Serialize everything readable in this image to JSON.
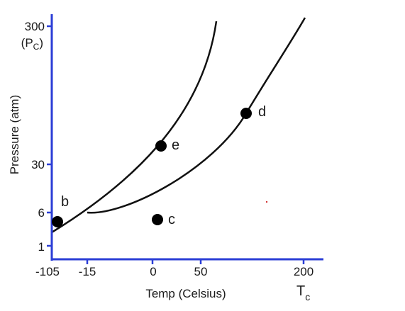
{
  "axes": {
    "y_title": "Pressure (atm)",
    "x_title": "Temp (Celsius)",
    "axis_color": "#2b3ed6"
  },
  "y_ticks": [
    {
      "label": "300"
    },
    {
      "label": "30"
    },
    {
      "label": "6"
    },
    {
      "label": "1"
    }
  ],
  "y_critical_label": {
    "open": "(P",
    "sub": "C",
    "close": ")"
  },
  "x_ticks": [
    {
      "label": "-105"
    },
    {
      "label": "-15"
    },
    {
      "label": "0"
    },
    {
      "label": "50"
    },
    {
      "label": "200"
    }
  ],
  "x_critical_label": {
    "main": "T",
    "sub": "c"
  },
  "points": [
    {
      "label": "b"
    },
    {
      "label": "c"
    },
    {
      "label": "d"
    },
    {
      "label": "e"
    }
  ],
  "curve_color": "#111111",
  "point_color": "#000000"
}
